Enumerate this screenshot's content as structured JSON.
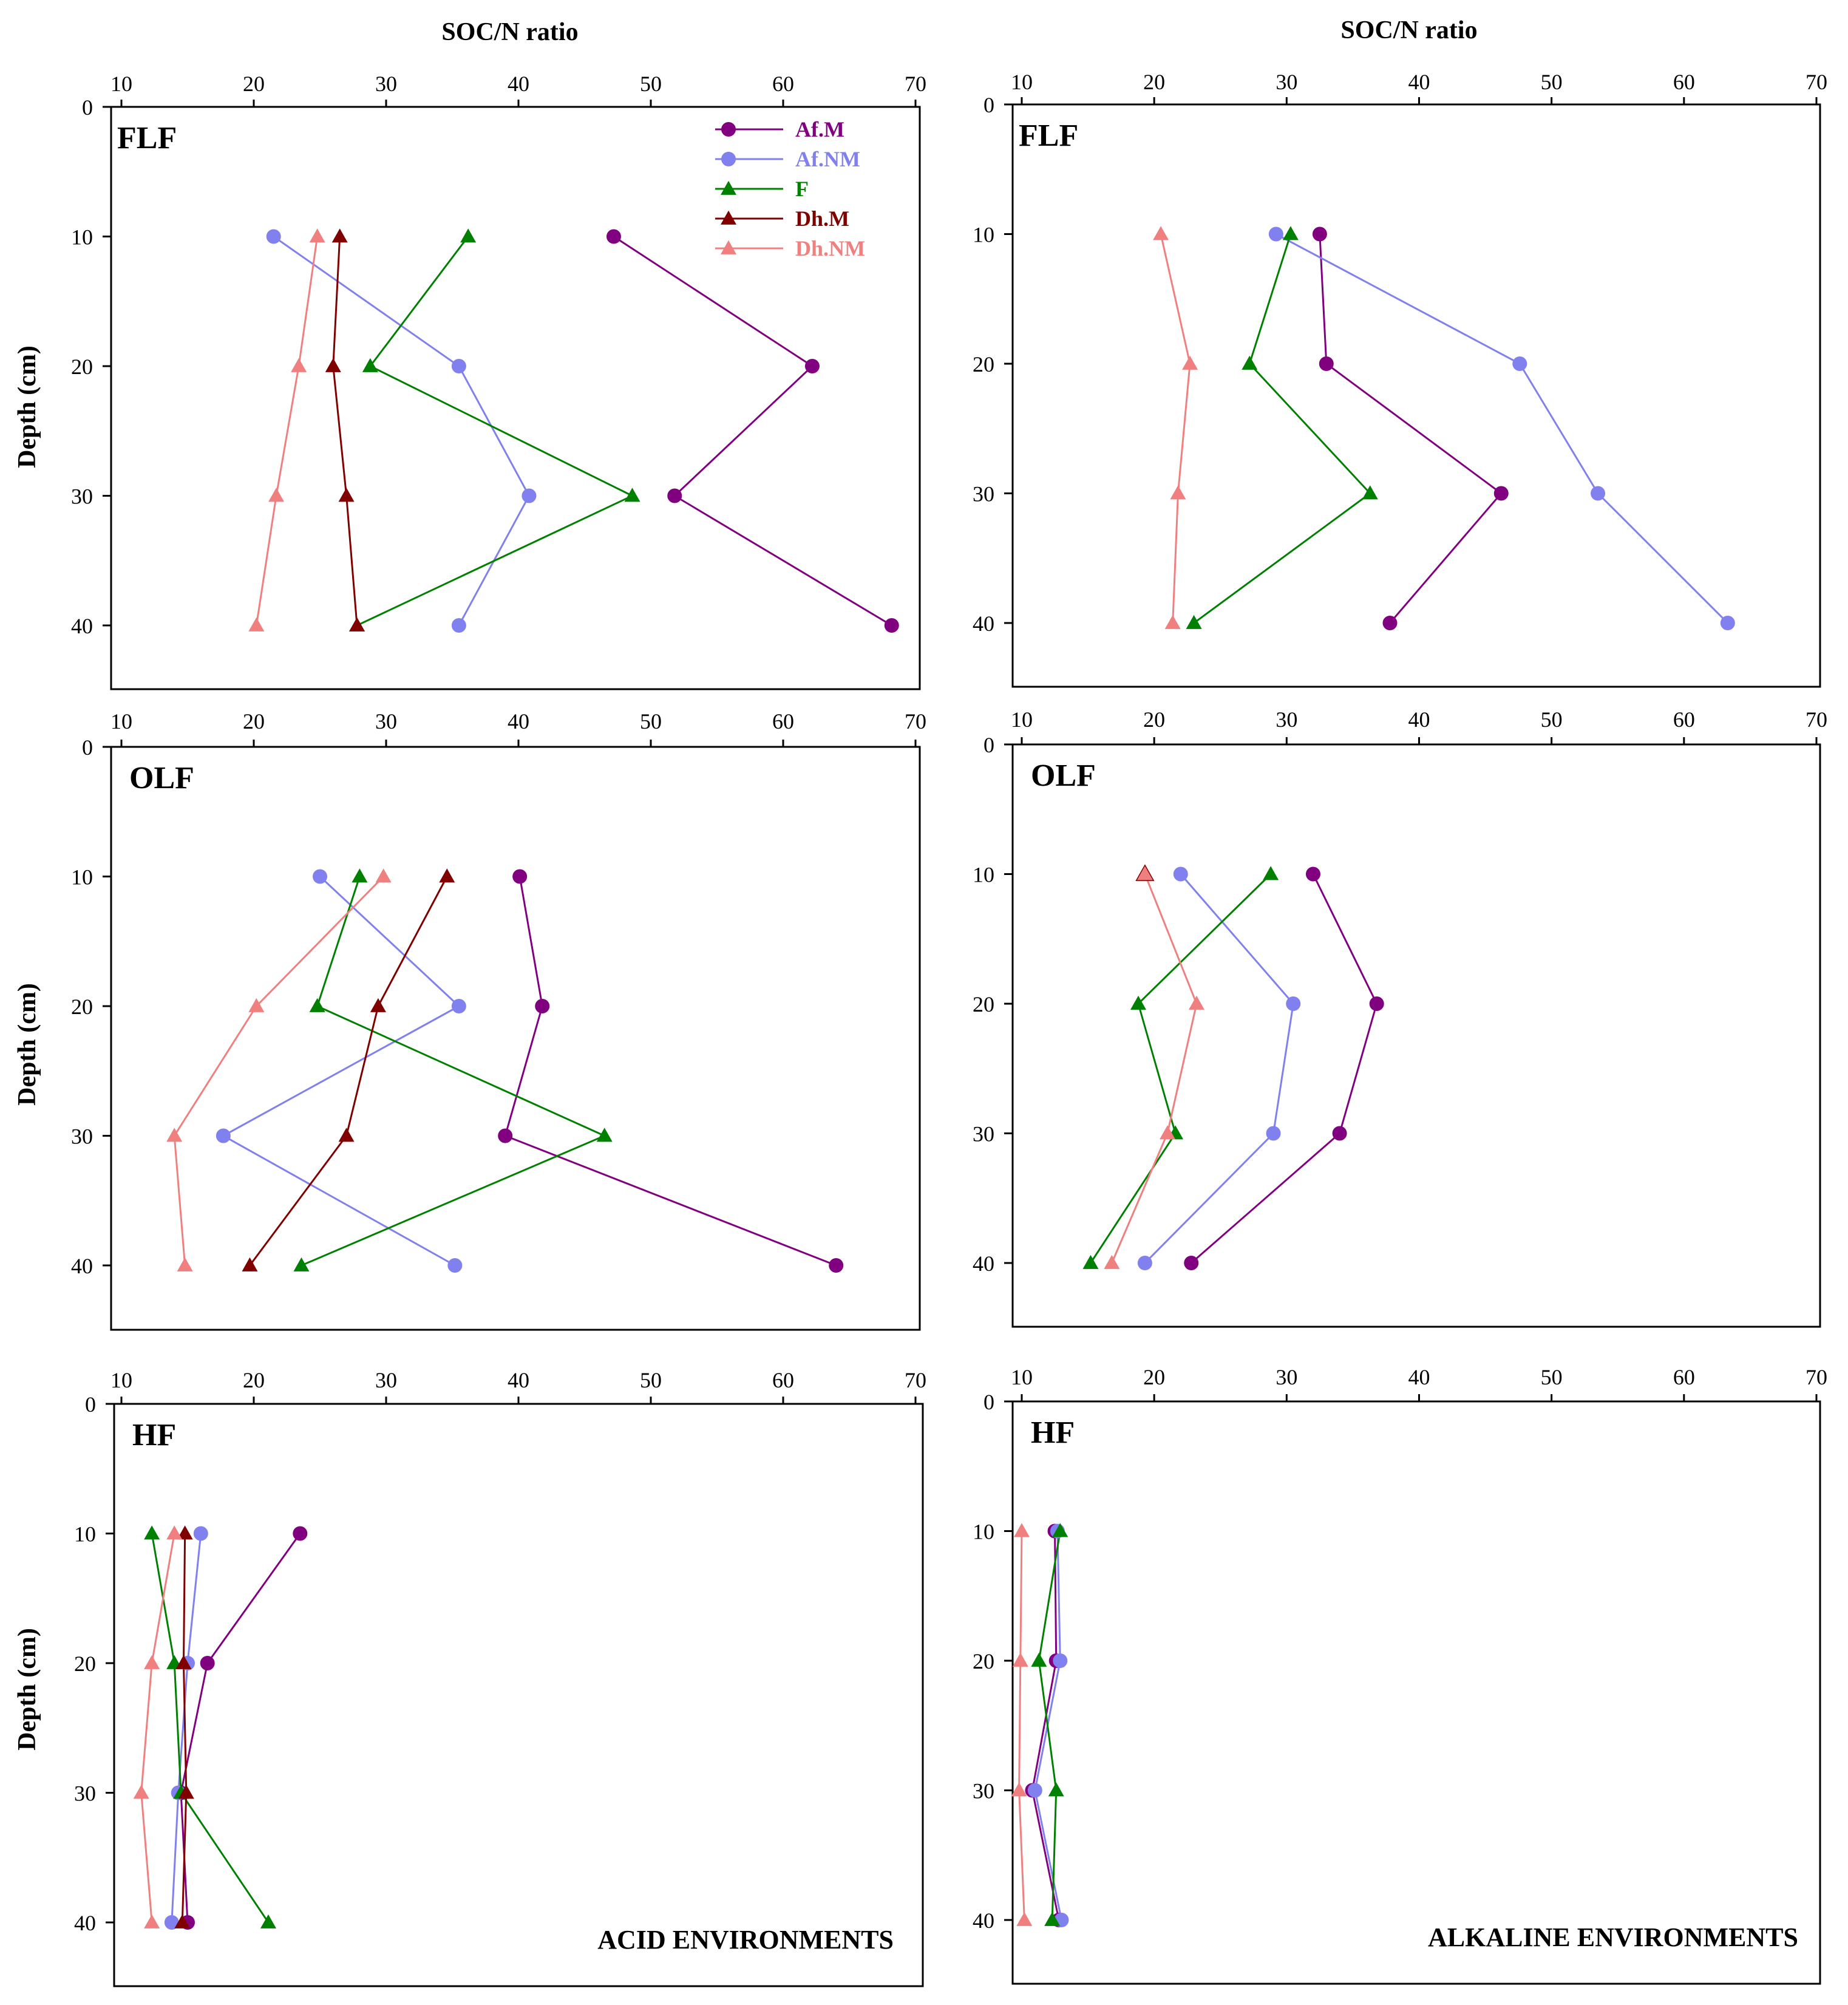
{
  "chart_data": {
    "type": "line",
    "xlabel": "SOC/N ratio",
    "ylabel": "Depth (cm)",
    "xlim": [
      10,
      70
    ],
    "ylim": [
      0,
      45
    ],
    "x_ticks": [
      10,
      20,
      30,
      40,
      50,
      60,
      70
    ],
    "y_ticks": [
      0,
      10,
      20,
      30,
      40
    ],
    "x_tick_labels": [
      "10",
      "20",
      "30",
      "40",
      "50",
      "60",
      "70"
    ],
    "y_tick_labels": [
      "0",
      "10",
      "20",
      "30",
      "40"
    ],
    "series_styles": [
      {
        "name": "Af.M",
        "color": "#800080",
        "marker": "circle"
      },
      {
        "name": "Af.NM",
        "color": "#8080ee",
        "marker": "circle"
      },
      {
        "name": "F",
        "color": "#008000",
        "marker": "triangle"
      },
      {
        "name": "Dh.M",
        "color": "#800000",
        "marker": "triangle"
      },
      {
        "name": "Dh.NM",
        "color": "#f08080",
        "marker": "triangle"
      }
    ],
    "legend_position": "top-right",
    "panels": [
      {
        "id": "acid-flf",
        "label": "FLF",
        "environment": "acid",
        "series": [
          {
            "name": "Af.M",
            "values": [
              [
                47.2,
                10
              ],
              [
                62.2,
                20
              ],
              [
                51.8,
                30
              ],
              [
                68.2,
                40
              ]
            ]
          },
          {
            "name": "Af.NM",
            "values": [
              [
                21.5,
                10
              ],
              [
                35.5,
                20
              ],
              [
                40.8,
                30
              ],
              [
                35.5,
                40
              ]
            ]
          },
          {
            "name": "F",
            "values": [
              [
                36.2,
                10
              ],
              [
                28.8,
                20
              ],
              [
                48.6,
                30
              ],
              [
                27.8,
                40
              ]
            ]
          },
          {
            "name": "Dh.M",
            "values": [
              [
                26.5,
                10
              ],
              [
                26.0,
                20
              ],
              [
                27.0,
                30
              ],
              [
                27.8,
                40
              ]
            ]
          },
          {
            "name": "Dh.NM",
            "values": [
              [
                24.8,
                10
              ],
              [
                23.4,
                20
              ],
              [
                21.7,
                30
              ],
              [
                20.2,
                40
              ]
            ]
          }
        ]
      },
      {
        "id": "alk-flf",
        "label": "FLF",
        "environment": "alkaline",
        "series": [
          {
            "name": "Af.M",
            "values": [
              [
                32.5,
                10
              ],
              [
                33.0,
                20
              ],
              [
                46.2,
                30
              ],
              [
                37.8,
                40
              ]
            ]
          },
          {
            "name": "Af.NM",
            "values": [
              [
                29.2,
                10
              ],
              [
                47.6,
                20
              ],
              [
                53.5,
                30
              ],
              [
                63.3,
                40
              ]
            ]
          },
          {
            "name": "F",
            "values": [
              [
                30.3,
                10
              ],
              [
                27.2,
                20
              ],
              [
                36.3,
                30
              ],
              [
                23.0,
                40
              ]
            ]
          },
          {
            "name": "Dh.M",
            "values": []
          },
          {
            "name": "Dh.NM",
            "values": [
              [
                20.5,
                10
              ],
              [
                22.7,
                20
              ],
              [
                21.8,
                30
              ],
              [
                21.4,
                40
              ]
            ]
          }
        ]
      },
      {
        "id": "acid-olf",
        "label": "OLF",
        "environment": "acid",
        "series": [
          {
            "name": "Af.M",
            "values": [
              [
                40.1,
                10
              ],
              [
                41.8,
                20
              ],
              [
                39.0,
                30
              ],
              [
                64.0,
                40
              ]
            ]
          },
          {
            "name": "Af.NM",
            "values": [
              [
                25.0,
                10
              ],
              [
                35.5,
                20
              ],
              [
                17.7,
                30
              ],
              [
                35.2,
                40
              ]
            ]
          },
          {
            "name": "F",
            "values": [
              [
                28.0,
                10
              ],
              [
                24.8,
                20
              ],
              [
                46.5,
                30
              ],
              [
                23.6,
                40
              ]
            ]
          },
          {
            "name": "Dh.M",
            "values": [
              [
                34.6,
                10
              ],
              [
                29.4,
                20
              ],
              [
                27.0,
                30
              ],
              [
                19.7,
                40
              ]
            ]
          },
          {
            "name": "Dh.NM",
            "values": [
              [
                29.8,
                10
              ],
              [
                20.2,
                20
              ],
              [
                14.0,
                30
              ],
              [
                14.8,
                40
              ]
            ]
          }
        ]
      },
      {
        "id": "alk-olf",
        "label": "OLF",
        "environment": "alkaline",
        "series": [
          {
            "name": "Af.M",
            "values": [
              [
                32.0,
                10
              ],
              [
                36.8,
                20
              ],
              [
                34.0,
                30
              ],
              [
                22.8,
                40
              ]
            ]
          },
          {
            "name": "Af.NM",
            "values": [
              [
                22.0,
                10
              ],
              [
                30.5,
                20
              ],
              [
                29.0,
                30
              ],
              [
                19.3,
                40
              ]
            ]
          },
          {
            "name": "F",
            "values": [
              [
                28.8,
                10
              ],
              [
                18.8,
                20
              ],
              [
                21.6,
                30
              ],
              [
                15.2,
                40
              ]
            ]
          },
          {
            "name": "Dh.M",
            "values": [
              [
                19.3,
                10
              ]
            ]
          },
          {
            "name": "Dh.NM",
            "values": [
              [
                19.3,
                10
              ],
              [
                23.2,
                20
              ],
              [
                21.0,
                30
              ],
              [
                16.8,
                40
              ]
            ]
          }
        ]
      },
      {
        "id": "acid-hf",
        "label": "HF",
        "environment": "acid",
        "env_label": "ACID ENVIRONMENTS",
        "series": [
          {
            "name": "Af.M",
            "values": [
              [
                23.5,
                10
              ],
              [
                16.5,
                20
              ],
              [
                14.5,
                30
              ],
              [
                15.0,
                40
              ]
            ]
          },
          {
            "name": "Af.NM",
            "values": [
              [
                16.0,
                10
              ],
              [
                15.0,
                20
              ],
              [
                14.3,
                30
              ],
              [
                13.8,
                40
              ]
            ]
          },
          {
            "name": "F",
            "values": [
              [
                12.3,
                10
              ],
              [
                14.0,
                20
              ],
              [
                14.5,
                30
              ],
              [
                21.1,
                40
              ]
            ]
          },
          {
            "name": "Dh.M",
            "values": [
              [
                14.8,
                10
              ],
              [
                14.7,
                20
              ],
              [
                14.9,
                30
              ],
              [
                14.6,
                40
              ]
            ]
          },
          {
            "name": "Dh.NM",
            "values": [
              [
                14.0,
                10
              ],
              [
                12.3,
                20
              ],
              [
                11.5,
                30
              ],
              [
                12.3,
                40
              ]
            ]
          }
        ]
      },
      {
        "id": "alk-hf",
        "label": "HF",
        "environment": "alkaline",
        "env_label": "ALKALINE ENVIRONMENTS",
        "series": [
          {
            "name": "Af.M",
            "values": [
              [
                12.5,
                10
              ],
              [
                12.6,
                20
              ],
              [
                10.8,
                30
              ],
              [
                12.8,
                40
              ]
            ]
          },
          {
            "name": "Af.NM",
            "values": [
              [
                12.7,
                10
              ],
              [
                12.9,
                20
              ],
              [
                11.0,
                30
              ],
              [
                13.0,
                40
              ]
            ]
          },
          {
            "name": "F",
            "values": [
              [
                12.9,
                10
              ],
              [
                11.3,
                20
              ],
              [
                12.6,
                30
              ],
              [
                12.3,
                40
              ]
            ]
          },
          {
            "name": "Dh.M",
            "values": []
          },
          {
            "name": "Dh.NM",
            "values": [
              [
                10.0,
                10
              ],
              [
                9.9,
                20
              ],
              [
                9.8,
                30
              ],
              [
                10.2,
                40
              ]
            ]
          }
        ]
      }
    ]
  }
}
